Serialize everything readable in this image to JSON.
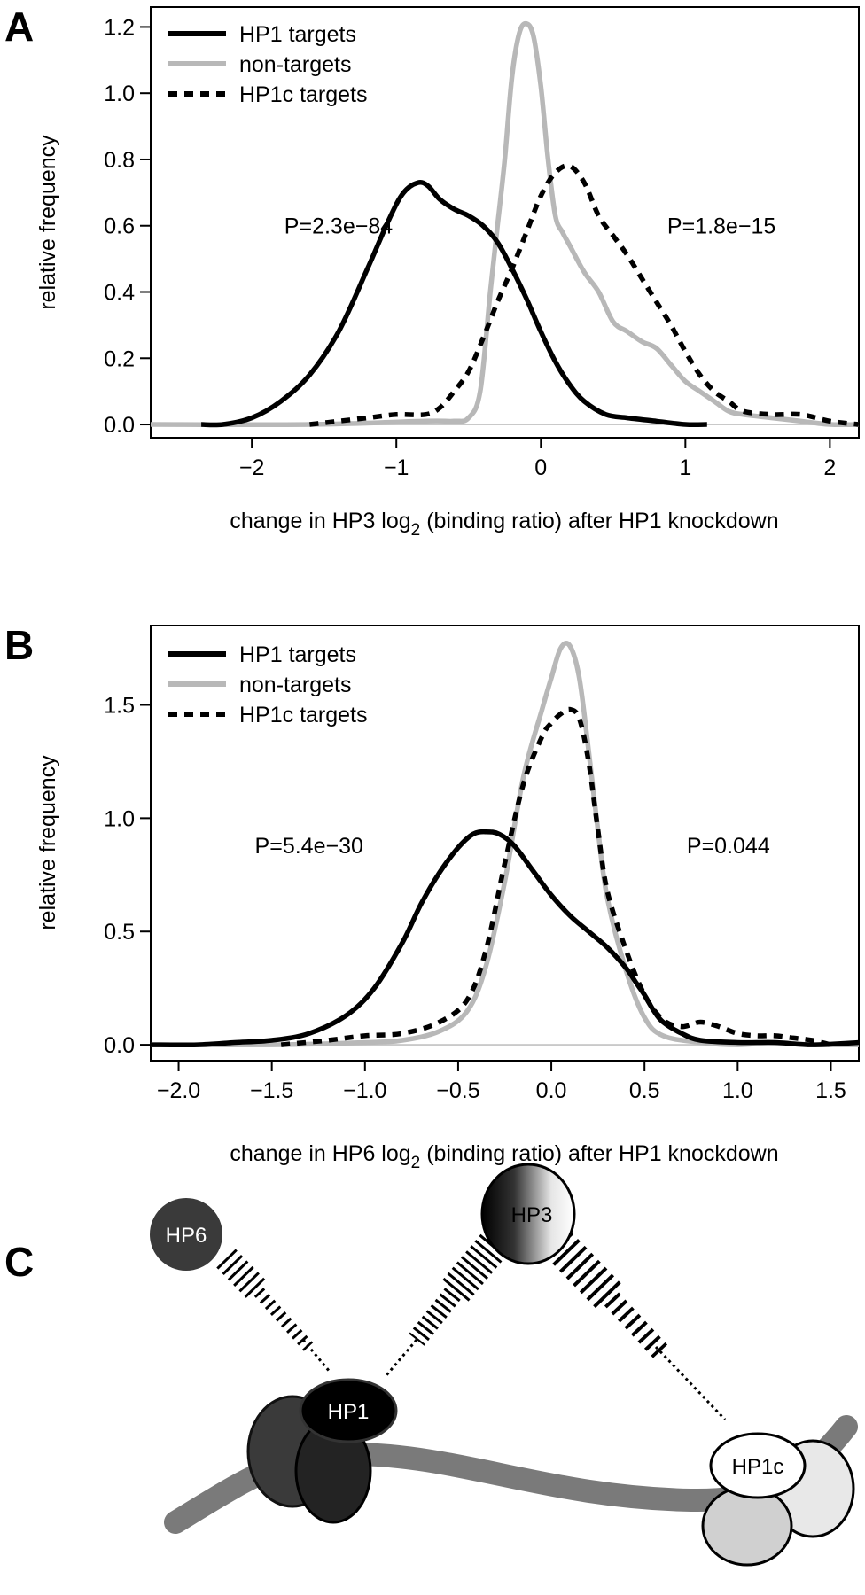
{
  "panels": [
    "A",
    "B",
    "C"
  ],
  "legend_style": {
    "HP1 targets": {
      "color": "#000000",
      "dash": ""
    },
    "non-targets": {
      "color": "#b8b8b8",
      "dash": ""
    },
    "HP1c targets": {
      "color": "#000000",
      "dash": "10,8"
    }
  },
  "chart_data": [
    {
      "type": "line",
      "panel": "A",
      "ylabel": "relative frequency",
      "xlabel_parts": [
        "change in HP3 log",
        "2",
        " (binding ratio) after HP1 knockdown"
      ],
      "xlim": [
        -2.7,
        2.2
      ],
      "ylim": [
        -0.04,
        1.26
      ],
      "xticks": [
        -2,
        -1,
        0,
        1,
        2
      ],
      "xtick_labels": [
        "−2",
        "−1",
        "0",
        "1",
        "2"
      ],
      "yticks": [
        0.0,
        0.2,
        0.4,
        0.6,
        0.8,
        1.0,
        1.2
      ],
      "ytick_labels": [
        "0.0",
        "0.2",
        "0.4",
        "0.6",
        "0.8",
        "1.0",
        "1.2"
      ],
      "baseline": 0,
      "legend_position": "top-left",
      "annotations": [
        {
          "text": "P=2.3e−84",
          "x": -1.4,
          "y": 0.6
        },
        {
          "text": "P=1.8e−15",
          "x": 1.25,
          "y": 0.6
        }
      ],
      "series": [
        {
          "name": "HP1 targets",
          "x": [
            -2.35,
            -2.2,
            -2.0,
            -1.8,
            -1.6,
            -1.4,
            -1.2,
            -1.05,
            -0.95,
            -0.85,
            -0.78,
            -0.7,
            -0.6,
            -0.5,
            -0.4,
            -0.3,
            -0.2,
            -0.1,
            0.0,
            0.1,
            0.2,
            0.3,
            0.45,
            0.6,
            0.8,
            1.0,
            1.15
          ],
          "y": [
            0.0,
            0.0,
            0.02,
            0.07,
            0.15,
            0.28,
            0.47,
            0.62,
            0.7,
            0.73,
            0.72,
            0.68,
            0.65,
            0.63,
            0.6,
            0.55,
            0.47,
            0.38,
            0.28,
            0.19,
            0.12,
            0.07,
            0.03,
            0.02,
            0.01,
            0.0,
            0.0
          ]
        },
        {
          "name": "non-targets",
          "x": [
            -2.7,
            -1.6,
            -0.8,
            -0.6,
            -0.5,
            -0.42,
            -0.35,
            -0.3,
            -0.25,
            -0.2,
            -0.15,
            -0.1,
            -0.05,
            0.0,
            0.05,
            0.1,
            0.15,
            0.2,
            0.3,
            0.4,
            0.5,
            0.6,
            0.7,
            0.8,
            0.9,
            1.0,
            1.1,
            1.2,
            1.3,
            1.4,
            1.6,
            1.8,
            2.0,
            2.2
          ],
          "y": [
            0.0,
            0.0,
            0.01,
            0.01,
            0.02,
            0.1,
            0.4,
            0.6,
            0.8,
            1.05,
            1.18,
            1.21,
            1.17,
            1.02,
            0.8,
            0.63,
            0.58,
            0.54,
            0.46,
            0.4,
            0.31,
            0.28,
            0.25,
            0.23,
            0.18,
            0.13,
            0.1,
            0.07,
            0.04,
            0.03,
            0.02,
            0.01,
            0.0,
            0.0
          ]
        },
        {
          "name": "HP1c targets",
          "x": [
            -1.6,
            -1.4,
            -1.2,
            -1.0,
            -0.8,
            -0.7,
            -0.6,
            -0.5,
            -0.4,
            -0.3,
            -0.2,
            -0.1,
            0.0,
            0.1,
            0.2,
            0.3,
            0.4,
            0.5,
            0.6,
            0.7,
            0.8,
            0.9,
            1.0,
            1.1,
            1.2,
            1.3,
            1.4,
            1.6,
            1.8,
            2.0,
            2.2
          ],
          "y": [
            0.0,
            0.01,
            0.02,
            0.03,
            0.03,
            0.05,
            0.1,
            0.16,
            0.26,
            0.37,
            0.47,
            0.58,
            0.69,
            0.76,
            0.78,
            0.73,
            0.63,
            0.57,
            0.51,
            0.44,
            0.37,
            0.3,
            0.22,
            0.15,
            0.1,
            0.07,
            0.04,
            0.03,
            0.03,
            0.01,
            0.0
          ]
        }
      ]
    },
    {
      "type": "line",
      "panel": "B",
      "ylabel": "relative frequency",
      "xlabel_parts": [
        "change in HP6 log",
        "2",
        " (binding ratio) after HP1 knockdown"
      ],
      "xlim": [
        -2.15,
        1.65
      ],
      "ylim": [
        -0.07,
        1.85
      ],
      "xticks": [
        -2.0,
        -1.5,
        -1.0,
        -0.5,
        0.0,
        0.5,
        1.0,
        1.5
      ],
      "xtick_labels": [
        "−2.0",
        "−1.5",
        "−1.0",
        "−0.5",
        "0.0",
        "0.5",
        "1.0",
        "1.5"
      ],
      "yticks": [
        0.0,
        0.5,
        1.0,
        1.5
      ],
      "ytick_labels": [
        "0.0",
        "0.5",
        "1.0",
        "1.5"
      ],
      "baseline": 0,
      "legend_position": "top-left",
      "annotations": [
        {
          "text": "P=5.4e−30",
          "x": -1.3,
          "y": 0.88
        },
        {
          "text": "P=0.044",
          "x": 0.95,
          "y": 0.88
        }
      ],
      "series": [
        {
          "name": "HP1 targets",
          "x": [
            -2.15,
            -1.9,
            -1.7,
            -1.5,
            -1.3,
            -1.1,
            -0.95,
            -0.8,
            -0.7,
            -0.6,
            -0.5,
            -0.42,
            -0.35,
            -0.28,
            -0.2,
            -0.1,
            0.0,
            0.1,
            0.2,
            0.3,
            0.4,
            0.45,
            0.5,
            0.55,
            0.6,
            0.7,
            0.8,
            1.0,
            1.2,
            1.4,
            1.65
          ],
          "y": [
            0.0,
            0.0,
            0.01,
            0.02,
            0.05,
            0.13,
            0.25,
            0.45,
            0.62,
            0.76,
            0.87,
            0.93,
            0.94,
            0.93,
            0.88,
            0.77,
            0.66,
            0.57,
            0.5,
            0.43,
            0.34,
            0.28,
            0.22,
            0.15,
            0.1,
            0.05,
            0.02,
            0.01,
            0.01,
            0.0,
            0.01
          ]
        },
        {
          "name": "non-targets",
          "x": [
            -2.15,
            -1.5,
            -1.0,
            -0.8,
            -0.6,
            -0.45,
            -0.35,
            -0.25,
            -0.15,
            -0.05,
            0.0,
            0.05,
            0.1,
            0.15,
            0.2,
            0.25,
            0.3,
            0.4,
            0.5,
            0.6,
            0.8,
            1.0,
            1.2,
            1.4,
            1.65
          ],
          "y": [
            0.0,
            0.0,
            0.01,
            0.02,
            0.06,
            0.15,
            0.35,
            0.72,
            1.18,
            1.48,
            1.62,
            1.75,
            1.76,
            1.62,
            1.3,
            0.95,
            0.65,
            0.33,
            0.12,
            0.04,
            0.01,
            0.0,
            0.01,
            0.0,
            0.0
          ]
        },
        {
          "name": "HP1c targets",
          "x": [
            -1.45,
            -1.2,
            -1.0,
            -0.8,
            -0.6,
            -0.45,
            -0.35,
            -0.25,
            -0.15,
            -0.05,
            0.0,
            0.05,
            0.1,
            0.15,
            0.2,
            0.25,
            0.3,
            0.4,
            0.5,
            0.6,
            0.7,
            0.8,
            0.9,
            1.0,
            1.1,
            1.2,
            1.3,
            1.4,
            1.5
          ],
          "y": [
            0.0,
            0.02,
            0.04,
            0.05,
            0.1,
            0.2,
            0.42,
            0.8,
            1.15,
            1.36,
            1.42,
            1.46,
            1.48,
            1.44,
            1.25,
            0.95,
            0.68,
            0.42,
            0.22,
            0.11,
            0.08,
            0.1,
            0.08,
            0.05,
            0.04,
            0.04,
            0.03,
            0.02,
            0.0
          ]
        }
      ]
    }
  ],
  "diagram": {
    "nodes": [
      {
        "id": "hp6",
        "label": "HP6"
      },
      {
        "id": "hp3",
        "label": "HP3"
      },
      {
        "id": "hp1",
        "label": "HP1"
      },
      {
        "id": "hp1c",
        "label": "HP1c"
      }
    ]
  }
}
